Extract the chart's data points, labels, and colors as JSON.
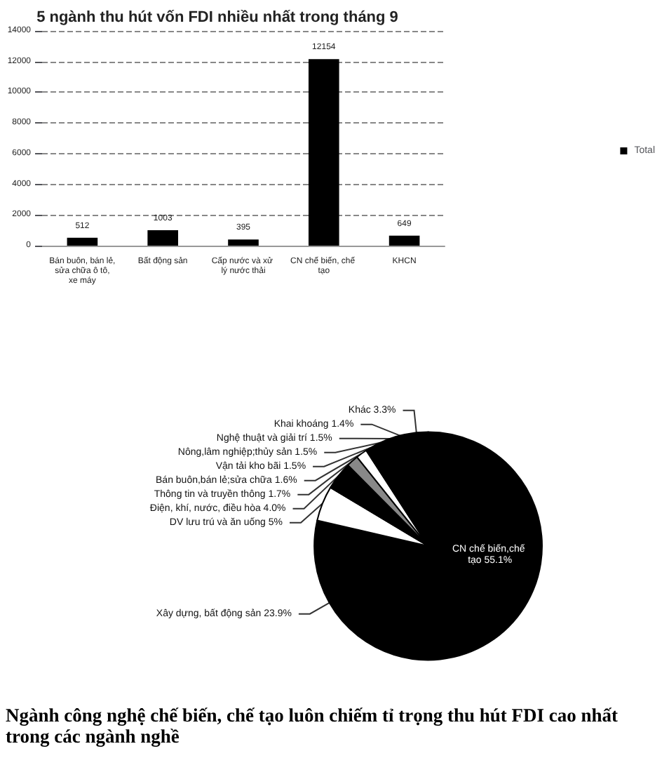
{
  "chart_data": [
    {
      "type": "bar",
      "title": "5 ngành thu hút vốn FDI nhiều nhất trong tháng 9",
      "categories": [
        "Bán buôn, bán lẻ, sửa chữa ô tô, xe máy",
        "Bất động sản",
        "Cấp nước và xử lý nước thải",
        "CN chế biến, chế tạo",
        "KHCN"
      ],
      "series": [
        {
          "name": "Total",
          "color": "#000000",
          "values": [
            512,
            1003,
            395,
            12154,
            649
          ]
        }
      ],
      "ylim": [
        0,
        14000
      ],
      "yticks": [
        0,
        2000,
        4000,
        6000,
        8000,
        10000,
        12000,
        14000
      ],
      "grid": "y",
      "legend": "right",
      "data_labels": true
    },
    {
      "type": "pie",
      "categories": [
        "CN chế biến,chế tạo",
        "Xây dựng, bất động sản",
        "DV lưu trú và ăn uống",
        "Điện, khí, nước, điều hòa",
        "Thông tin và truyền thông",
        "Bán buôn,bán lẻ;sửa chữa",
        "Vận tải kho bãi",
        "Nông,lâm nghiệp;thủy sản",
        "Nghệ thuật và giải trí",
        "Khai khoáng",
        "Khác"
      ],
      "values": [
        55.1,
        23.9,
        5,
        4.0,
        1.7,
        1.6,
        1.5,
        1.5,
        1.5,
        1.4,
        3.3
      ],
      "value_labels": [
        "55.1%",
        "23.9%",
        "5%",
        "4.0%",
        "1.7%",
        "1.6%",
        "1.5%",
        "1.5%",
        "1.5%",
        "1.4%",
        "3.3%"
      ],
      "colors": [
        "#000000",
        "#000000",
        "#ffffff",
        "#000000",
        "#888888",
        "#ffffff",
        "#000000",
        "#000000",
        "#000000",
        "#000000",
        "#000000"
      ],
      "annotations": [
        "Ngành công nghệ chế biến, chế tạo luôn chiếm tỉ trọng thu hút FDI cao nhất trong các ngành nghề"
      ]
    }
  ]
}
